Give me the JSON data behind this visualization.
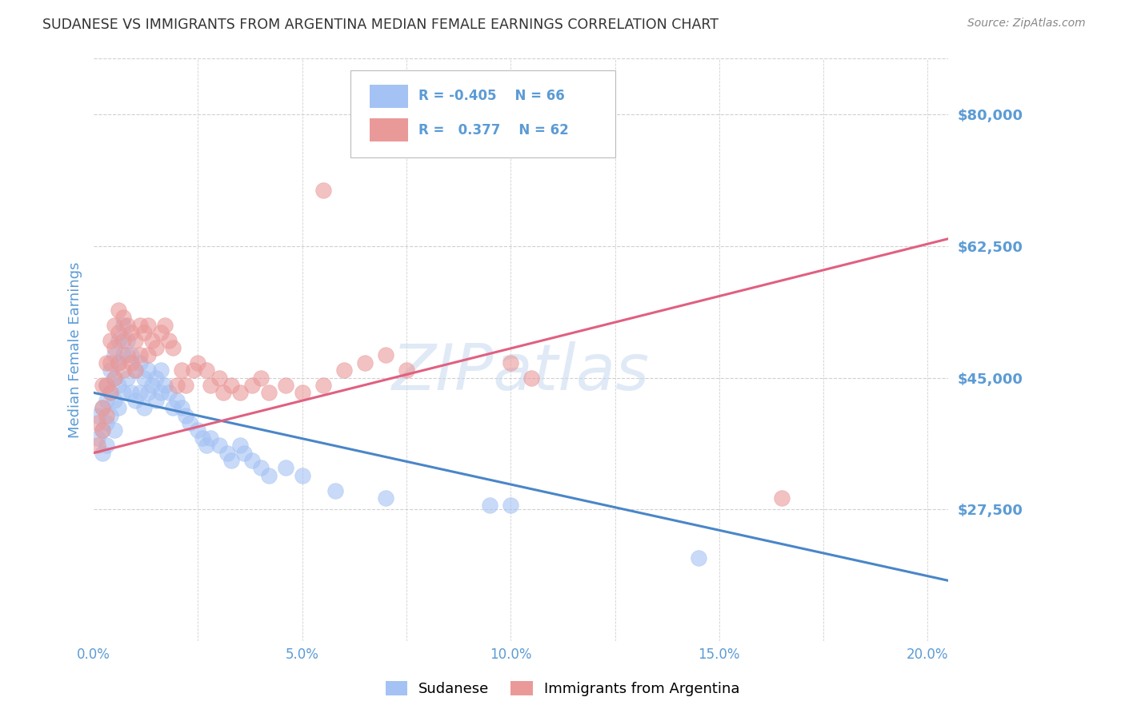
{
  "title": "SUDANESE VS IMMIGRANTS FROM ARGENTINA MEDIAN FEMALE EARNINGS CORRELATION CHART",
  "source": "Source: ZipAtlas.com",
  "ylabel": "Median Female Earnings",
  "xlim": [
    0.0,
    0.205
  ],
  "ylim": [
    10000,
    87500
  ],
  "yticks": [
    27500,
    45000,
    62500,
    80000
  ],
  "ytick_labels": [
    "$27,500",
    "$45,000",
    "$62,500",
    "$80,000"
  ],
  "xticks": [
    0.0,
    0.025,
    0.05,
    0.075,
    0.1,
    0.125,
    0.15,
    0.175,
    0.2
  ],
  "xtick_labels": [
    "0.0%",
    "",
    "5.0%",
    "",
    "10.0%",
    "",
    "15.0%",
    "",
    "20.0%"
  ],
  "blue_color": "#a4c2f4",
  "pink_color": "#ea9999",
  "blue_line_color": "#4a86c8",
  "pink_line_color": "#e06080",
  "r_blue": "-0.405",
  "n_blue": "66",
  "r_pink": "0.377",
  "n_pink": "62",
  "legend_blue_label": "Sudanese",
  "legend_pink_label": "Immigrants from Argentina",
  "watermark": "ZIPatlas",
  "title_color": "#444444",
  "axis_label_color": "#5b9bd5",
  "grid_color": "#d0d0d0",
  "background_color": "#ffffff",
  "blue_trend_x": [
    0.0,
    0.205
  ],
  "blue_trend_y": [
    43000,
    18000
  ],
  "pink_trend_x": [
    0.0,
    0.205
  ],
  "pink_trend_y": [
    35000,
    63500
  ],
  "blue_scatter_x": [
    0.001,
    0.001,
    0.002,
    0.002,
    0.002,
    0.003,
    0.003,
    0.003,
    0.003,
    0.004,
    0.004,
    0.004,
    0.005,
    0.005,
    0.005,
    0.005,
    0.006,
    0.006,
    0.006,
    0.006,
    0.007,
    0.007,
    0.007,
    0.008,
    0.008,
    0.009,
    0.009,
    0.01,
    0.01,
    0.011,
    0.011,
    0.012,
    0.012,
    0.013,
    0.013,
    0.014,
    0.015,
    0.015,
    0.016,
    0.016,
    0.017,
    0.018,
    0.019,
    0.02,
    0.021,
    0.022,
    0.023,
    0.025,
    0.026,
    0.027,
    0.028,
    0.03,
    0.032,
    0.033,
    0.035,
    0.036,
    0.038,
    0.04,
    0.042,
    0.046,
    0.05,
    0.058,
    0.07,
    0.095,
    0.1,
    0.145
  ],
  "blue_scatter_y": [
    40000,
    37000,
    41000,
    38000,
    35000,
    44000,
    42000,
    39000,
    36000,
    46000,
    43000,
    40000,
    48000,
    45000,
    42000,
    38000,
    50000,
    47000,
    44000,
    41000,
    52000,
    48000,
    43000,
    50000,
    45000,
    48000,
    43000,
    46000,
    42000,
    47000,
    43000,
    45000,
    41000,
    46000,
    43000,
    44000,
    45000,
    42000,
    46000,
    43000,
    44000,
    43000,
    41000,
    42000,
    41000,
    40000,
    39000,
    38000,
    37000,
    36000,
    37000,
    36000,
    35000,
    34000,
    36000,
    35000,
    34000,
    33000,
    32000,
    33000,
    32000,
    30000,
    29000,
    28000,
    28000,
    21000
  ],
  "pink_scatter_x": [
    0.001,
    0.001,
    0.002,
    0.002,
    0.002,
    0.003,
    0.003,
    0.003,
    0.004,
    0.004,
    0.004,
    0.005,
    0.005,
    0.005,
    0.006,
    0.006,
    0.006,
    0.007,
    0.007,
    0.007,
    0.008,
    0.008,
    0.009,
    0.009,
    0.01,
    0.01,
    0.011,
    0.011,
    0.012,
    0.013,
    0.013,
    0.014,
    0.015,
    0.016,
    0.017,
    0.018,
    0.019,
    0.02,
    0.021,
    0.022,
    0.024,
    0.025,
    0.027,
    0.028,
    0.03,
    0.031,
    0.033,
    0.035,
    0.038,
    0.04,
    0.042,
    0.046,
    0.05,
    0.055,
    0.06,
    0.065,
    0.07,
    0.075,
    0.1,
    0.105,
    0.055,
    0.165
  ],
  "pink_scatter_y": [
    39000,
    36000,
    44000,
    41000,
    38000,
    47000,
    44000,
    40000,
    50000,
    47000,
    43000,
    52000,
    49000,
    45000,
    54000,
    51000,
    47000,
    53000,
    50000,
    46000,
    52000,
    48000,
    51000,
    47000,
    50000,
    46000,
    52000,
    48000,
    51000,
    52000,
    48000,
    50000,
    49000,
    51000,
    52000,
    50000,
    49000,
    44000,
    46000,
    44000,
    46000,
    47000,
    46000,
    44000,
    45000,
    43000,
    44000,
    43000,
    44000,
    45000,
    43000,
    44000,
    43000,
    44000,
    46000,
    47000,
    48000,
    46000,
    47000,
    45000,
    70000,
    29000
  ]
}
